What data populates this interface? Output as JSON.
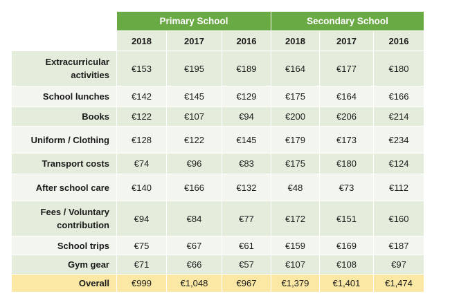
{
  "chart_data": {
    "type": "table",
    "groups": [
      "Primary School",
      "Secondary School"
    ],
    "years": [
      "2018",
      "2017",
      "2016",
      "2018",
      "2017",
      "2016"
    ],
    "rows": [
      {
        "label": "Extracurricular activities",
        "values": [
          "€153",
          "€195",
          "€189",
          "€164",
          "€177",
          "€180"
        ]
      },
      {
        "label": "School lunches",
        "values": [
          "€142",
          "€145",
          "€129",
          "€175",
          "€164",
          "€166"
        ]
      },
      {
        "label": "Books",
        "values": [
          "€122",
          "€107",
          "€94",
          "€200",
          "€206",
          "€214"
        ]
      },
      {
        "label": "Uniform  / Clothing",
        "values": [
          "€128",
          "€122",
          "€145",
          "€179",
          "€173",
          "€234"
        ]
      },
      {
        "label": "Transport costs",
        "values": [
          "€74",
          "€96",
          "€83",
          "€175",
          "€180",
          "€124"
        ]
      },
      {
        "label": "After school care",
        "values": [
          "€140",
          "€166",
          "€132",
          "€48",
          "€73",
          "€112"
        ]
      },
      {
        "label": "Fees / Voluntary contribution",
        "values": [
          "€94",
          "€84",
          "€77",
          "€172",
          "€151",
          "€160"
        ]
      },
      {
        "label": "School trips",
        "values": [
          "€75",
          "€67",
          "€61",
          "€159",
          "€169",
          "€187"
        ]
      },
      {
        "label": "Gym gear",
        "values": [
          "€71",
          "€66",
          "€57",
          "€107",
          "€108",
          "€97"
        ]
      }
    ],
    "total": {
      "label": "Overall",
      "values": [
        "€999",
        "€1,048",
        "€967",
        "€1,379",
        "€1,401",
        "€1,474"
      ]
    },
    "colors": {
      "header": "#6aaa45",
      "row_dark": "#e4eddc",
      "row_light": "#f2f6ee",
      "total": "#fbe8a4"
    }
  }
}
